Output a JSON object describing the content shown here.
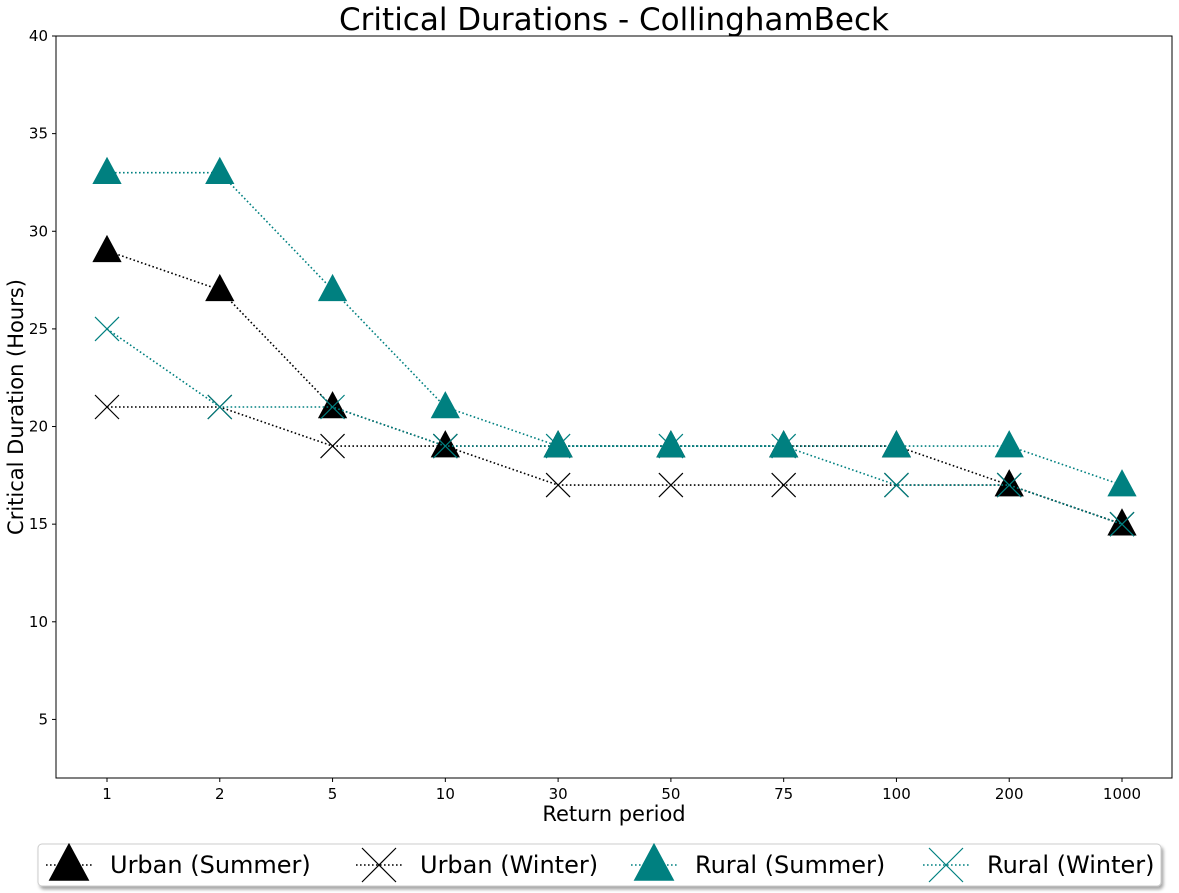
{
  "chart_data": {
    "type": "line",
    "title": "Critical Durations - CollinghamBeck",
    "xlabel": "Return period",
    "ylabel": "Critical Duration (Hours)",
    "categories": [
      "1",
      "2",
      "5",
      "10",
      "30",
      "50",
      "75",
      "100",
      "200",
      "1000"
    ],
    "ylim": [
      2,
      40
    ],
    "yticks": [
      5,
      10,
      15,
      20,
      25,
      30,
      35,
      40
    ],
    "grid": false,
    "legend_position": "bottom",
    "series": [
      {
        "name": "Urban (Summer)",
        "color": "#000000",
        "marker": "triangle",
        "values": [
          29,
          27,
          21,
          19,
          19,
          19,
          19,
          19,
          17,
          15
        ]
      },
      {
        "name": "Urban (Winter)",
        "color": "#000000",
        "marker": "x",
        "values": [
          21,
          21,
          19,
          19,
          17,
          17,
          17,
          17,
          17,
          15
        ]
      },
      {
        "name": "Rural (Summer)",
        "color": "#008080",
        "marker": "triangle",
        "values": [
          33,
          33,
          27,
          21,
          19,
          19,
          19,
          19,
          19,
          17
        ]
      },
      {
        "name": "Rural (Winter)",
        "color": "#008080",
        "marker": "x",
        "values": [
          25,
          21,
          21,
          19,
          19,
          19,
          19,
          17,
          17,
          15
        ]
      }
    ]
  }
}
